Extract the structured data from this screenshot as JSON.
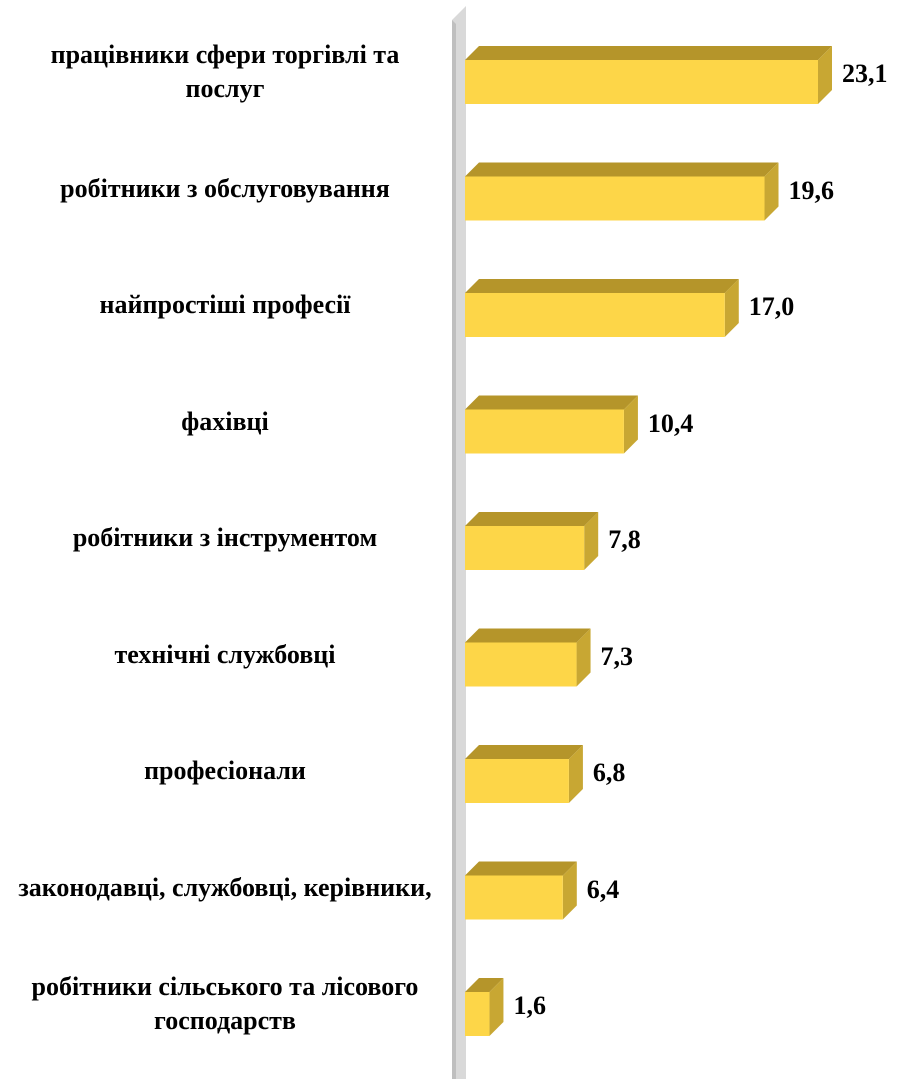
{
  "chart_data": {
    "type": "bar3d_horizontal",
    "categories": [
      "працівники сфери торгівлі та послуг",
      "робітники з обслуговування",
      "найпростіші професії",
      "фахівці",
      "робітники з інструментом",
      "технічні службовці",
      "професіонали",
      "законодавці, службовці, керівники,",
      "робітники сільського та лісового господарств"
    ],
    "values": [
      23.1,
      19.6,
      17.0,
      10.4,
      7.8,
      7.3,
      6.8,
      6.4,
      1.6
    ],
    "value_labels": [
      "23,1",
      "19,6",
      "17,0",
      "10,4",
      "7,8",
      "7,3",
      "6,8",
      "6,4",
      "1,6"
    ],
    "color": "#fdd648"
  }
}
